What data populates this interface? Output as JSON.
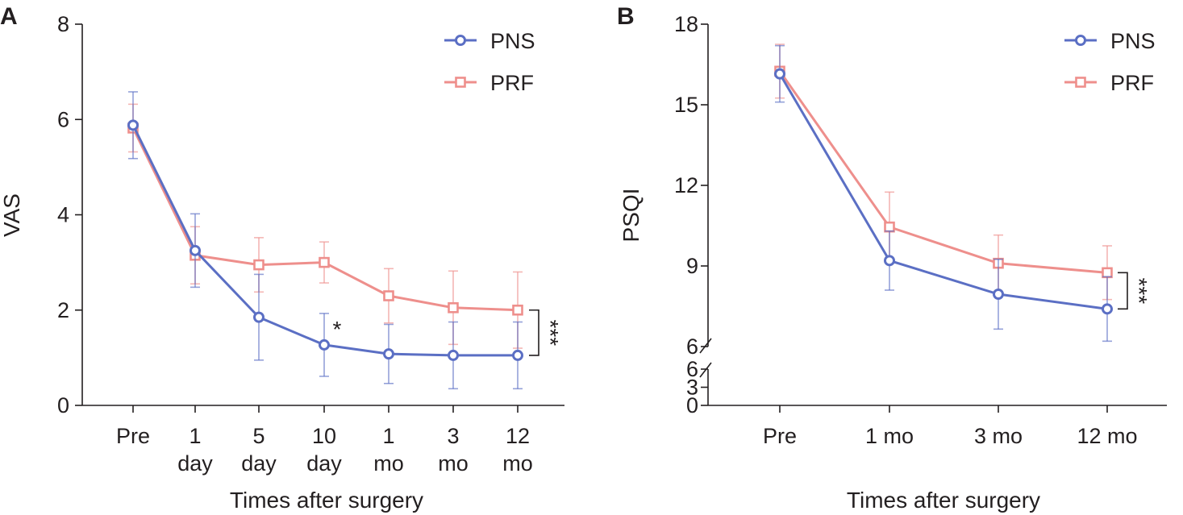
{
  "chart_data": [
    {
      "type": "line",
      "panel": "A",
      "title": "",
      "xlabel": "Times after surgery",
      "ylabel": "VAS",
      "ylim": [
        0,
        8
      ],
      "yticks": [
        "0",
        "2",
        "4",
        "6",
        "8"
      ],
      "categories": [
        [
          "Pre"
        ],
        [
          "1",
          "day"
        ],
        [
          "5",
          "day"
        ],
        [
          "10",
          "day"
        ],
        [
          "1",
          "mo"
        ],
        [
          "3",
          "mo"
        ],
        [
          "12",
          "mo"
        ]
      ],
      "series": [
        {
          "name": "PNS",
          "color": "#5b6fc4",
          "marker": "circle",
          "values": [
            5.88,
            3.25,
            1.85,
            1.27,
            1.08,
            1.05,
            1.05
          ],
          "errors": [
            0.7,
            0.77,
            0.9,
            0.66,
            0.62,
            0.7,
            0.7
          ]
        },
        {
          "name": "PRF",
          "color": "#ee8f8c",
          "marker": "square",
          "values": [
            5.82,
            3.15,
            2.95,
            3.0,
            2.3,
            2.05,
            2.0
          ],
          "errors": [
            0.5,
            0.6,
            0.57,
            0.43,
            0.57,
            0.77,
            0.8
          ]
        }
      ],
      "annotations": [
        {
          "text": "*",
          "at_category": 3
        }
      ],
      "significance": "***",
      "legend": "top-right"
    },
    {
      "type": "line",
      "panel": "B",
      "title": "",
      "xlabel": "Times after surgery",
      "ylabel": "PSQI",
      "ylim": [
        0,
        18
      ],
      "axis_break": [
        6,
        6
      ],
      "lower_yticks": [
        "0",
        "3",
        "6"
      ],
      "upper_yticks": [
        "6",
        "9",
        "12",
        "15",
        "18"
      ],
      "categories": [
        "Pre",
        "1 mo",
        "3 mo",
        "12 mo"
      ],
      "series": [
        {
          "name": "PNS",
          "color": "#5b6fc4",
          "marker": "circle",
          "values": [
            16.15,
            9.2,
            7.95,
            7.4
          ],
          "errors": [
            1.05,
            1.1,
            1.3,
            1.2
          ]
        },
        {
          "name": "PRF",
          "color": "#ee8f8c",
          "marker": "square",
          "values": [
            16.25,
            10.45,
            9.1,
            8.75
          ],
          "errors": [
            1.0,
            1.3,
            1.05,
            1.0
          ]
        }
      ],
      "significance": "***",
      "legend": "top-right"
    }
  ]
}
